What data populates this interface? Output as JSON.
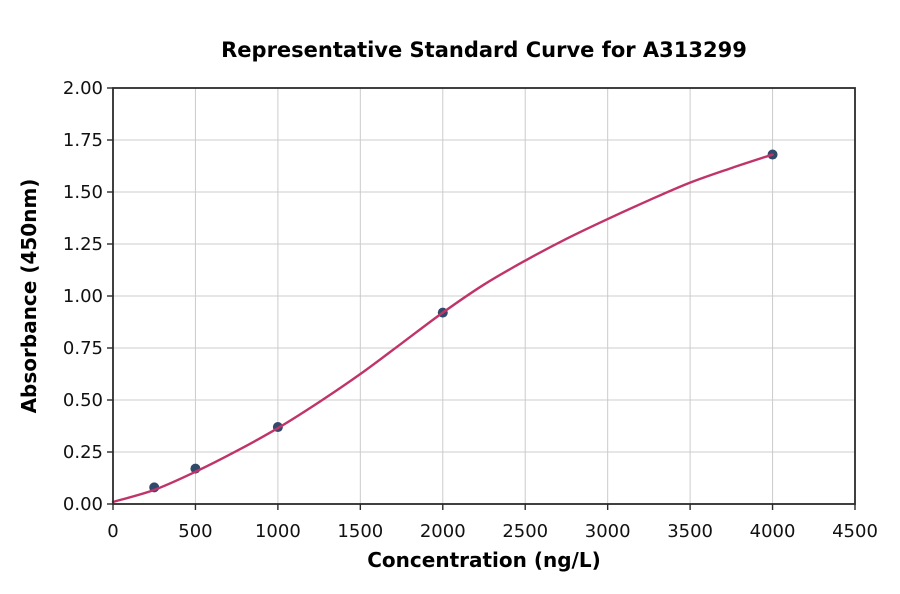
{
  "chart_data": {
    "type": "scatter",
    "title": "Representative Standard Curve for A313299",
    "xlabel": "Concentration (ng/L)",
    "ylabel": "Absorbance (450nm)",
    "xlim": [
      0,
      4500
    ],
    "ylim": [
      0.0,
      2.0
    ],
    "grid": true,
    "legend_position": "none",
    "x_ticks": {
      "values": [
        0,
        500,
        1000,
        1500,
        2000,
        2500,
        3000,
        3500,
        4000,
        4500
      ],
      "labels": [
        "0",
        "500",
        "1000",
        "1500",
        "2000",
        "2500",
        "3000",
        "3500",
        "4000",
        "4500"
      ]
    },
    "y_ticks": {
      "values": [
        0.0,
        0.25,
        0.5,
        0.75,
        1.0,
        1.25,
        1.5,
        1.75,
        2.0
      ],
      "labels": [
        "0.00",
        "0.25",
        "0.50",
        "0.75",
        "1.00",
        "1.25",
        "1.50",
        "1.75",
        "2.00"
      ]
    },
    "series": [
      {
        "name": "standard-points",
        "type": "scatter",
        "x": [
          250,
          500,
          1000,
          2000,
          4000
        ],
        "y": [
          0.08,
          0.17,
          0.37,
          0.92,
          1.68
        ]
      },
      {
        "name": "4pl-fit-curve",
        "type": "line",
        "x": [
          0,
          250,
          500,
          750,
          1000,
          1250,
          1500,
          1750,
          2000,
          2250,
          2500,
          2750,
          3000,
          3250,
          3500,
          3750,
          4000
        ],
        "y": [
          0.01,
          0.068,
          0.155,
          0.255,
          0.365,
          0.49,
          0.625,
          0.772,
          0.92,
          1.055,
          1.17,
          1.275,
          1.37,
          1.46,
          1.545,
          1.615,
          1.68
        ]
      }
    ],
    "colors": {
      "curve": "#C0346A",
      "marker": "#2F4A6B",
      "grid": "#CCCCCC",
      "frame": "#2B2B2B",
      "text": "#000000",
      "background": "#FFFFFF"
    }
  }
}
